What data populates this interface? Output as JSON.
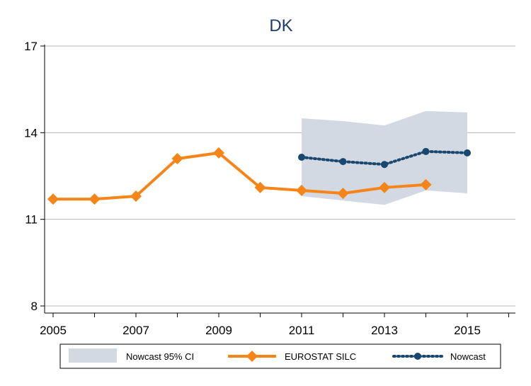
{
  "chart_data": {
    "type": "line",
    "title": "DK",
    "xlabel": "",
    "ylabel": "",
    "xlim": [
      2005,
      2016
    ],
    "ylim": [
      8,
      17
    ],
    "x_ticks": [
      2005,
      2007,
      2009,
      2011,
      2013,
      2015
    ],
    "y_ticks": [
      8,
      11,
      14,
      17
    ],
    "grid": "horizontal",
    "legend_position": "bottom",
    "series": [
      {
        "name": "Nowcast 95% CI",
        "kind": "band",
        "color": "#d3d9e2",
        "x": [
          2011,
          2012,
          2013,
          2014,
          2015
        ],
        "upper": [
          14.5,
          14.4,
          14.25,
          14.75,
          14.7
        ],
        "lower": [
          11.8,
          11.65,
          11.5,
          12.0,
          11.9
        ]
      },
      {
        "name": "EUROSTAT SILC",
        "kind": "line",
        "marker": "diamond",
        "color": "#f58518",
        "x": [
          2005,
          2006,
          2007,
          2008,
          2009,
          2010,
          2011,
          2012,
          2013,
          2014
        ],
        "values": [
          11.7,
          11.7,
          11.8,
          13.1,
          13.3,
          12.1,
          12.0,
          11.9,
          12.1,
          12.2
        ]
      },
      {
        "name": "Nowcast",
        "kind": "line",
        "style": "dotted",
        "marker": "circle",
        "color": "#1a476f",
        "x": [
          2011,
          2012,
          2013,
          2014,
          2015
        ],
        "values": [
          13.15,
          13.0,
          12.9,
          13.35,
          13.3
        ]
      }
    ]
  }
}
